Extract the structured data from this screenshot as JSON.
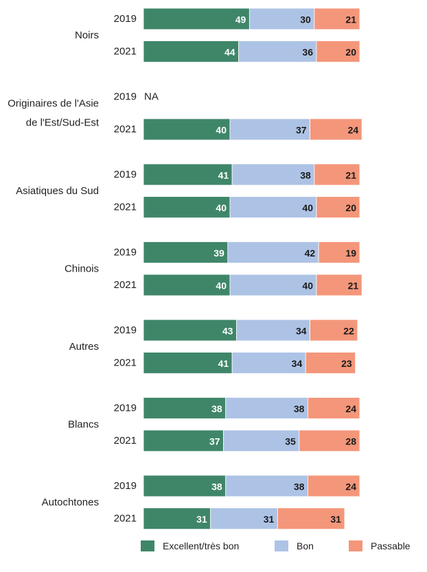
{
  "chart_data": {
    "type": "bar",
    "orientation": "horizontal",
    "stacked": true,
    "title": "",
    "xlabel": "",
    "ylabel": "",
    "xlim": [
      0,
      100
    ],
    "grid": false,
    "legend_position": "bottom",
    "series": [
      {
        "name": "Excellent/très bon",
        "color": "#3f8669"
      },
      {
        "name": "Bon",
        "color": "#adc3e5"
      },
      {
        "name": "Passable",
        "color": "#f4967a"
      }
    ],
    "groups": [
      {
        "label": [
          "Noirs"
        ],
        "rows": [
          {
            "year": "2019",
            "values": [
              49,
              30,
              21
            ]
          },
          {
            "year": "2021",
            "values": [
              44,
              36,
              20
            ]
          }
        ]
      },
      {
        "label": [
          "Originaires de l'Asie",
          "de l'Est/Sud-Est"
        ],
        "rows": [
          {
            "year": "2019",
            "values": null,
            "note": "NA"
          },
          {
            "year": "2021",
            "values": [
              40,
              37,
              24
            ]
          }
        ]
      },
      {
        "label": [
          "Asiatiques du Sud"
        ],
        "rows": [
          {
            "year": "2019",
            "values": [
              41,
              38,
              21
            ]
          },
          {
            "year": "2021",
            "values": [
              40,
              40,
              20
            ]
          }
        ]
      },
      {
        "label": [
          "Chinois"
        ],
        "rows": [
          {
            "year": "2019",
            "values": [
              39,
              42,
              19
            ]
          },
          {
            "year": "2021",
            "values": [
              40,
              40,
              21
            ]
          }
        ]
      },
      {
        "label": [
          "Autres"
        ],
        "rows": [
          {
            "year": "2019",
            "values": [
              43,
              34,
              22
            ]
          },
          {
            "year": "2021",
            "values": [
              41,
              34,
              23
            ]
          }
        ]
      },
      {
        "label": [
          "Blancs"
        ],
        "rows": [
          {
            "year": "2019",
            "values": [
              38,
              38,
              24
            ]
          },
          {
            "year": "2021",
            "values": [
              37,
              35,
              28
            ]
          }
        ]
      },
      {
        "label": [
          "Autochtones"
        ],
        "rows": [
          {
            "year": "2019",
            "values": [
              38,
              38,
              24
            ]
          },
          {
            "year": "2021",
            "values": [
              31,
              31,
              31
            ]
          }
        ]
      }
    ]
  }
}
